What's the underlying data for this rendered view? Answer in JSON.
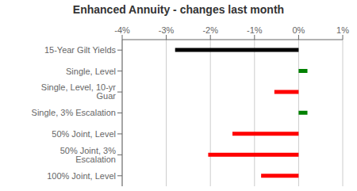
{
  "chart_data": {
    "type": "bar",
    "orientation": "horizontal",
    "title": "Enhanced Annuity - changes last month",
    "categories": [
      "15-Year Gilt Yields",
      "Single, Level",
      "Single, Level, 10-yr Guar",
      "Single, 3% Escalation",
      "50% Joint, Level",
      "50% Joint, 3% Escalation",
      "100% Joint, Level"
    ],
    "values": [
      -2.8,
      0.2,
      -0.55,
      0.2,
      -1.5,
      -2.05,
      -0.85
    ],
    "colors": [
      "#000000",
      "#008000",
      "#ff0000",
      "#008000",
      "#ff0000",
      "#ff0000",
      "#ff0000"
    ],
    "xlim": [
      -4.0,
      1.0
    ],
    "xticks": [
      {
        "value": -4,
        "label": "-4%"
      },
      {
        "value": -3,
        "label": "-3%"
      },
      {
        "value": -2,
        "label": "-2%"
      },
      {
        "value": -1,
        "label": "-1%"
      },
      {
        "value": 0,
        "label": "0%"
      },
      {
        "value": 1,
        "label": "1%"
      }
    ],
    "grid": true
  }
}
